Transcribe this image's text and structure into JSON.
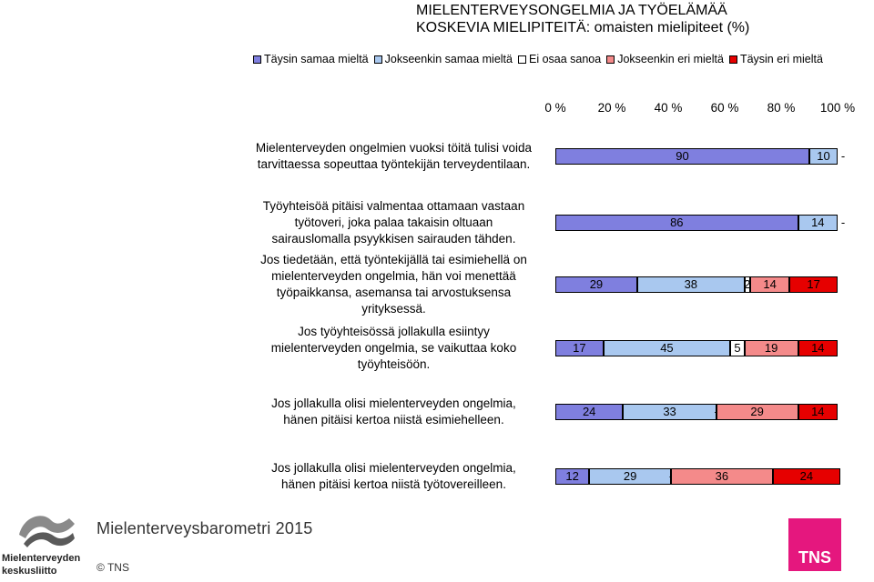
{
  "chart_data": {
    "type": "bar",
    "orientation": "horizontal",
    "stacked": true,
    "title": "MIELENTERVEYSONGELMIA JA TYÖELÄMÄÄ",
    "subtitle": "KOSKEVIA MIELIPITEITÄ: omaisten mielipiteet (%)",
    "legend_position": "top",
    "xlim": [
      0,
      100
    ],
    "x_ticks": [
      "0 %",
      "20 %",
      "40 %",
      "60 %",
      "80 %",
      "100 %"
    ],
    "series": [
      {
        "name": "Täysin samaa mieltä",
        "color": "#7f7fdf"
      },
      {
        "name": "Jokseenkin samaa mieltä",
        "color": "#a9c8ef"
      },
      {
        "name": "Ei osaa sanoa",
        "color": "#ffffff"
      },
      {
        "name": "Jokseenkin eri mieltä",
        "color": "#f48a8a"
      },
      {
        "name": "Täysin eri mieltä",
        "color": "#e60000"
      }
    ],
    "rows": [
      {
        "lines": [
          "Mielenterveyden ongelmien vuoksi töitä tulisi voida",
          "tarvittaessa sopeuttaa työntekijän terveydentilaan."
        ],
        "values": [
          90,
          10,
          0,
          0,
          0
        ],
        "labels": [
          "90",
          "10",
          "-",
          "",
          ""
        ]
      },
      {
        "lines": [
          "Työyhteisöä pitäisi valmentaa ottamaan vastaan",
          "työtoveri, joka palaa takaisin oltuaan",
          "sairauslomalla psyykkisen sairauden tähden."
        ],
        "values": [
          86,
          14,
          0,
          0,
          0
        ],
        "labels": [
          "86",
          "14",
          "-",
          "",
          ""
        ]
      },
      {
        "lines": [
          "Jos tiedetään, että työntekijällä tai esimiehellä on",
          "mielenterveyden ongelmia, hän voi menettää",
          "työpaikkansa, asemansa tai arvostuksensa",
          "yrityksessä."
        ],
        "values": [
          29,
          38,
          2,
          14,
          17
        ],
        "labels": [
          "29",
          "38",
          "2",
          "14",
          "17"
        ]
      },
      {
        "lines": [
          "Jos työyhteisössä jollakulla esiintyy",
          "mielenterveyden ongelmia, se vaikuttaa koko",
          "työyhteisöön."
        ],
        "values": [
          17,
          45,
          5,
          19,
          14
        ],
        "labels": [
          "17",
          "45",
          "5",
          "19",
          "14"
        ]
      },
      {
        "lines": [
          "Jos jollakulla olisi mielenterveyden ongelmia,",
          "hänen pitäisi kertoa niistä esimiehelleen."
        ],
        "values": [
          24,
          33,
          0,
          29,
          14
        ],
        "labels": [
          "24",
          "33",
          "-",
          "29",
          "14"
        ]
      },
      {
        "lines": [
          "Jos jollakulla olisi mielenterveyden ongelmia,",
          "hänen pitäisi kertoa niistä työtovereilleen."
        ],
        "values": [
          12,
          29,
          0,
          36,
          24
        ],
        "labels": [
          "12",
          "29",
          "-",
          "36",
          "24"
        ]
      }
    ]
  },
  "footer": {
    "brand": "Mielenterveysbarometri 2015",
    "copyright": "© TNS",
    "org_logo_line1": "Mielenterveyden",
    "org_logo_line2": "keskusliitto",
    "tns_logo": "TNS"
  }
}
